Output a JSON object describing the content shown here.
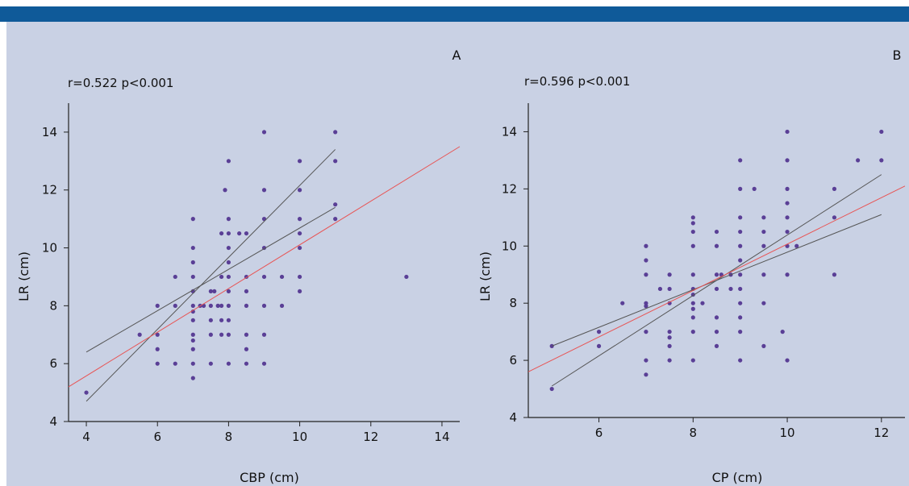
{
  "colors": {
    "background": "#c9d1e4",
    "banner": "#0f5a99",
    "point": "#5a3f96",
    "fit_line": "#e85454",
    "ci_line": "#555555",
    "axis": "#222222"
  },
  "chart_data": [
    {
      "type": "scatter",
      "panel_label": "A",
      "stats_text": "r=0.522 p<0.001",
      "xlabel": "CBP (cm)",
      "ylabel": "LR (cm)",
      "xlim": [
        3.5,
        14.5
      ],
      "ylim": [
        4,
        15
      ],
      "xticks": [
        4,
        6,
        8,
        10,
        12,
        14
      ],
      "yticks": [
        4,
        6,
        8,
        10,
        12,
        14
      ],
      "points": [
        [
          4,
          5
        ],
        [
          5.5,
          7
        ],
        [
          6,
          8
        ],
        [
          6,
          7
        ],
        [
          6,
          6.5
        ],
        [
          6,
          6
        ],
        [
          6.5,
          9
        ],
        [
          6.5,
          8
        ],
        [
          6.5,
          6
        ],
        [
          7,
          11
        ],
        [
          7,
          10
        ],
        [
          7,
          9.5
        ],
        [
          7,
          9
        ],
        [
          7,
          8.5
        ],
        [
          7,
          8
        ],
        [
          7,
          7.8
        ],
        [
          7,
          7.5
        ],
        [
          7,
          7
        ],
        [
          7,
          6.8
        ],
        [
          7,
          6.5
        ],
        [
          7,
          6
        ],
        [
          7,
          5.5
        ],
        [
          7.2,
          8
        ],
        [
          7.3,
          8
        ],
        [
          7.5,
          8.5
        ],
        [
          7.5,
          8
        ],
        [
          7.5,
          7.5
        ],
        [
          7.5,
          7
        ],
        [
          7.5,
          6
        ],
        [
          7.6,
          8.5
        ],
        [
          7.7,
          8
        ],
        [
          7.8,
          10.5
        ],
        [
          7.8,
          9
        ],
        [
          7.8,
          8
        ],
        [
          7.8,
          7.5
        ],
        [
          7.8,
          7
        ],
        [
          7.9,
          12
        ],
        [
          8,
          13
        ],
        [
          8,
          11
        ],
        [
          8,
          10.5
        ],
        [
          8,
          10
        ],
        [
          8,
          9.5
        ],
        [
          8,
          9
        ],
        [
          8,
          8.5
        ],
        [
          8,
          8
        ],
        [
          8,
          7.5
        ],
        [
          8,
          7
        ],
        [
          8,
          6
        ],
        [
          8.3,
          10.5
        ],
        [
          8.5,
          10.5
        ],
        [
          8.5,
          9
        ],
        [
          8.5,
          8.5
        ],
        [
          8.5,
          8
        ],
        [
          8.5,
          7
        ],
        [
          8.5,
          6.5
        ],
        [
          8.5,
          6
        ],
        [
          9,
          14
        ],
        [
          9,
          12
        ],
        [
          9,
          11
        ],
        [
          9,
          10
        ],
        [
          9,
          9
        ],
        [
          9,
          8
        ],
        [
          9,
          7
        ],
        [
          9,
          6
        ],
        [
          9.5,
          9
        ],
        [
          9.5,
          8
        ],
        [
          10,
          13
        ],
        [
          10,
          12
        ],
        [
          10,
          11
        ],
        [
          10,
          10.5
        ],
        [
          10,
          10
        ],
        [
          10,
          9
        ],
        [
          10,
          8.5
        ],
        [
          11,
          14
        ],
        [
          11,
          13
        ],
        [
          11,
          11.5
        ],
        [
          11,
          11
        ],
        [
          13,
          9
        ]
      ],
      "fit": {
        "x": [
          3.5,
          14.5
        ],
        "y": [
          5.2,
          13.5
        ]
      },
      "ci_upper": {
        "x": [
          4,
          11
        ],
        "y": [
          6.4,
          11.4
        ]
      },
      "ci_lower": {
        "x": [
          4,
          11
        ],
        "y": [
          4.7,
          13.4
        ]
      }
    },
    {
      "type": "scatter",
      "panel_label": "B",
      "stats_text": "r=0.596 p<0.001",
      "xlabel": "CP (cm)",
      "ylabel": "LR (cm)",
      "xlim": [
        4.5,
        12.5
      ],
      "ylim": [
        4,
        15
      ],
      "xticks": [
        6,
        8,
        10,
        12
      ],
      "yticks": [
        4,
        6,
        8,
        10,
        12,
        14
      ],
      "points": [
        [
          5,
          6.5
        ],
        [
          5,
          5
        ],
        [
          6,
          7
        ],
        [
          6,
          6.5
        ],
        [
          6.5,
          8
        ],
        [
          7,
          10
        ],
        [
          7,
          9.5
        ],
        [
          7,
          9
        ],
        [
          7,
          8
        ],
        [
          7,
          7.9
        ],
        [
          7,
          7
        ],
        [
          7,
          6
        ],
        [
          7,
          5.5
        ],
        [
          7.3,
          8.5
        ],
        [
          7.5,
          9
        ],
        [
          7.5,
          8.5
        ],
        [
          7.5,
          8
        ],
        [
          7.5,
          7
        ],
        [
          7.5,
          6.8
        ],
        [
          7.5,
          6.5
        ],
        [
          7.5,
          6
        ],
        [
          8,
          11
        ],
        [
          8,
          10.8
        ],
        [
          8,
          10.5
        ],
        [
          8,
          10
        ],
        [
          8,
          9
        ],
        [
          8,
          8.5
        ],
        [
          8,
          8.3
        ],
        [
          8,
          8
        ],
        [
          8,
          7.8
        ],
        [
          8,
          7.5
        ],
        [
          8,
          7
        ],
        [
          8,
          6
        ],
        [
          8.2,
          8
        ],
        [
          8.5,
          10.5
        ],
        [
          8.5,
          10
        ],
        [
          8.5,
          9
        ],
        [
          8.5,
          8.5
        ],
        [
          8.5,
          7.5
        ],
        [
          8.5,
          7
        ],
        [
          8.5,
          6.5
        ],
        [
          8.6,
          9
        ],
        [
          8.8,
          9
        ],
        [
          8.8,
          8.5
        ],
        [
          9,
          13
        ],
        [
          9,
          12
        ],
        [
          9,
          11
        ],
        [
          9,
          10.5
        ],
        [
          9,
          10
        ],
        [
          9,
          9.5
        ],
        [
          9,
          9
        ],
        [
          9,
          8.5
        ],
        [
          9,
          8
        ],
        [
          9,
          7.5
        ],
        [
          9,
          7
        ],
        [
          9,
          6
        ],
        [
          9.3,
          12
        ],
        [
          9.5,
          11
        ],
        [
          9.5,
          10.5
        ],
        [
          9.5,
          10
        ],
        [
          9.5,
          9
        ],
        [
          9.5,
          8
        ],
        [
          9.5,
          6.5
        ],
        [
          9.9,
          7
        ],
        [
          10,
          14
        ],
        [
          10,
          13
        ],
        [
          10,
          12
        ],
        [
          10,
          11.5
        ],
        [
          10,
          11
        ],
        [
          10,
          10.5
        ],
        [
          10,
          10
        ],
        [
          10,
          9
        ],
        [
          10,
          6
        ],
        [
          10.2,
          10
        ],
        [
          11,
          12
        ],
        [
          11,
          11
        ],
        [
          11,
          9
        ],
        [
          11.5,
          13
        ],
        [
          12,
          14
        ],
        [
          12,
          13
        ]
      ],
      "fit": {
        "x": [
          4.5,
          12.5
        ],
        "y": [
          5.6,
          12.1
        ]
      },
      "ci_upper": {
        "x": [
          5,
          12
        ],
        "y": [
          6.5,
          11.1
        ]
      },
      "ci_lower": {
        "x": [
          5,
          12
        ],
        "y": [
          5.1,
          12.5
        ]
      }
    }
  ]
}
